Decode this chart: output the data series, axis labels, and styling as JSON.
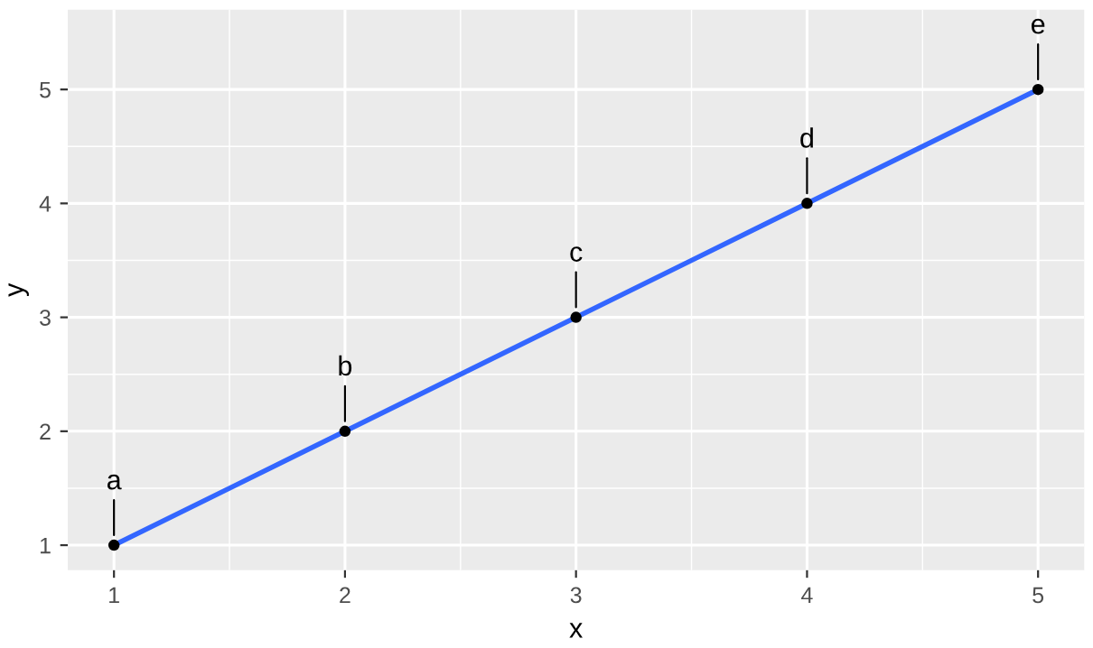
{
  "chart_data": {
    "type": "scatter",
    "xlabel": "x",
    "ylabel": "y",
    "series": [
      {
        "color": "#000000",
        "x": [
          1,
          2,
          3,
          4,
          5
        ],
        "values": [
          1,
          2,
          3,
          4,
          5
        ]
      },
      {
        "type": "line",
        "marker": "none",
        "color": "#3366ff",
        "x": [
          1,
          5
        ],
        "values": [
          1,
          5
        ]
      }
    ],
    "annotations": [
      {
        "text": "a",
        "x": 1,
        "y": 1
      },
      {
        "text": "b",
        "x": 2,
        "y": 2
      },
      {
        "text": "c",
        "x": 3,
        "y": 3
      },
      {
        "text": "d",
        "x": 4,
        "y": 4
      },
      {
        "text": "e",
        "x": 5,
        "y": 5
      }
    ],
    "xlim": [
      0.8,
      5.2
    ],
    "ylim": [
      0.78,
      5.7
    ],
    "xticks": [
      1,
      2,
      3,
      4,
      5
    ],
    "yticks": [
      1,
      2,
      3,
      4,
      5
    ],
    "grid": true,
    "marker": "circle",
    "line_style": "solid"
  }
}
